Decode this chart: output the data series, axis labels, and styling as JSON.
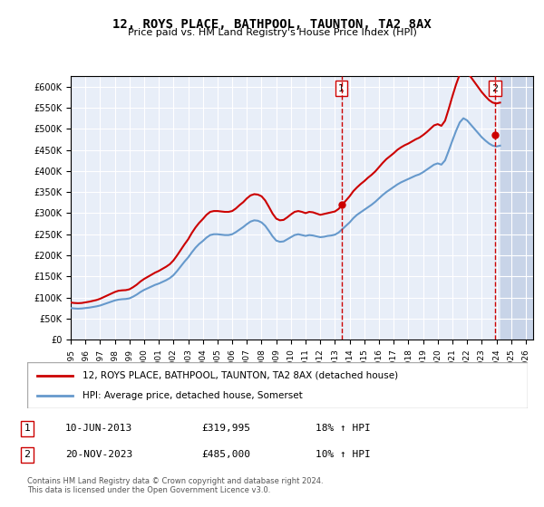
{
  "title": "12, ROYS PLACE, BATHPOOL, TAUNTON, TA2 8AX",
  "subtitle": "Price paid vs. HM Land Registry's House Price Index (HPI)",
  "ylabel": "",
  "ylim": [
    0,
    625000
  ],
  "yticks": [
    0,
    50000,
    100000,
    150000,
    200000,
    250000,
    300000,
    350000,
    400000,
    450000,
    500000,
    550000,
    600000
  ],
  "ytick_labels": [
    "£0",
    "£50K",
    "£100K",
    "£150K",
    "£200K",
    "£250K",
    "£300K",
    "£350K",
    "£400K",
    "£450K",
    "£500K",
    "£550K",
    "£600K"
  ],
  "x_start_year": 1995,
  "x_end_year": 2026,
  "xticks": [
    1995,
    1996,
    1997,
    1998,
    1999,
    2000,
    2001,
    2002,
    2003,
    2004,
    2005,
    2006,
    2007,
    2008,
    2009,
    2010,
    2011,
    2012,
    2013,
    2014,
    2015,
    2016,
    2017,
    2018,
    2019,
    2020,
    2021,
    2022,
    2023,
    2024,
    2025,
    2026
  ],
  "bg_color": "#e8eef8",
  "hatch_color": "#c8d4e8",
  "grid_color": "#ffffff",
  "red_line_color": "#cc0000",
  "blue_line_color": "#6699cc",
  "marker_color": "#cc0000",
  "sale1": {
    "date": 2013.44,
    "price": 319995,
    "label": "1"
  },
  "sale2": {
    "date": 2023.89,
    "price": 485000,
    "label": "2"
  },
  "legend_line1": "12, ROYS PLACE, BATHPOOL, TAUNTON, TA2 8AX (detached house)",
  "legend_line2": "HPI: Average price, detached house, Somerset",
  "table_rows": [
    [
      "1",
      "10-JUN-2013",
      "£319,995",
      "18% ↑ HPI"
    ],
    [
      "2",
      "20-NOV-2023",
      "£485,000",
      "10% ↑ HPI"
    ]
  ],
  "footer": "Contains HM Land Registry data © Crown copyright and database right 2024.\nThis data is licensed under the Open Government Licence v3.0.",
  "hpi_data": {
    "years": [
      1995.0,
      1995.25,
      1995.5,
      1995.75,
      1996.0,
      1996.25,
      1996.5,
      1996.75,
      1997.0,
      1997.25,
      1997.5,
      1997.75,
      1998.0,
      1998.25,
      1998.5,
      1998.75,
      1999.0,
      1999.25,
      1999.5,
      1999.75,
      2000.0,
      2000.25,
      2000.5,
      2000.75,
      2001.0,
      2001.25,
      2001.5,
      2001.75,
      2002.0,
      2002.25,
      2002.5,
      2002.75,
      2003.0,
      2003.25,
      2003.5,
      2003.75,
      2004.0,
      2004.25,
      2004.5,
      2004.75,
      2005.0,
      2005.25,
      2005.5,
      2005.75,
      2006.0,
      2006.25,
      2006.5,
      2006.75,
      2007.0,
      2007.25,
      2007.5,
      2007.75,
      2008.0,
      2008.25,
      2008.5,
      2008.75,
      2009.0,
      2009.25,
      2009.5,
      2009.75,
      2010.0,
      2010.25,
      2010.5,
      2010.75,
      2011.0,
      2011.25,
      2011.5,
      2011.75,
      2012.0,
      2012.25,
      2012.5,
      2012.75,
      2013.0,
      2013.25,
      2013.5,
      2013.75,
      2014.0,
      2014.25,
      2014.5,
      2014.75,
      2015.0,
      2015.25,
      2015.5,
      2015.75,
      2016.0,
      2016.25,
      2016.5,
      2016.75,
      2017.0,
      2017.25,
      2017.5,
      2017.75,
      2018.0,
      2018.25,
      2018.5,
      2018.75,
      2019.0,
      2019.25,
      2019.5,
      2019.75,
      2020.0,
      2020.25,
      2020.5,
      2020.75,
      2021.0,
      2021.25,
      2021.5,
      2021.75,
      2022.0,
      2022.25,
      2022.5,
      2022.75,
      2023.0,
      2023.25,
      2023.5,
      2023.75,
      2024.0,
      2024.25
    ],
    "values": [
      75000,
      74000,
      73500,
      74000,
      75000,
      76000,
      77500,
      79000,
      81000,
      84000,
      87000,
      90000,
      93000,
      95000,
      96000,
      96500,
      98000,
      102000,
      107000,
      113000,
      118000,
      122000,
      126000,
      130000,
      133000,
      137000,
      141000,
      146000,
      153000,
      163000,
      174000,
      185000,
      195000,
      207000,
      218000,
      227000,
      234000,
      242000,
      248000,
      250000,
      250000,
      249000,
      248000,
      248000,
      250000,
      255000,
      261000,
      267000,
      274000,
      280000,
      283000,
      282000,
      278000,
      270000,
      258000,
      245000,
      235000,
      232000,
      233000,
      238000,
      243000,
      248000,
      250000,
      248000,
      246000,
      248000,
      247000,
      245000,
      243000,
      244000,
      246000,
      247000,
      249000,
      254000,
      262000,
      270000,
      278000,
      288000,
      296000,
      302000,
      308000,
      314000,
      320000,
      327000,
      335000,
      343000,
      350000,
      356000,
      362000,
      368000,
      373000,
      377000,
      381000,
      385000,
      389000,
      392000,
      397000,
      403000,
      409000,
      415000,
      418000,
      415000,
      425000,
      448000,
      472000,
      495000,
      515000,
      525000,
      520000,
      510000,
      500000,
      490000,
      480000,
      472000,
      465000,
      460000,
      458000,
      460000
    ]
  },
  "hpi_red_data": {
    "years": [
      1995.0,
      1995.25,
      1995.5,
      1995.75,
      1996.0,
      1996.25,
      1996.5,
      1996.75,
      1997.0,
      1997.25,
      1997.5,
      1997.75,
      1998.0,
      1998.25,
      1998.5,
      1998.75,
      1999.0,
      1999.25,
      1999.5,
      1999.75,
      2000.0,
      2000.25,
      2000.5,
      2000.75,
      2001.0,
      2001.25,
      2001.5,
      2001.75,
      2002.0,
      2002.25,
      2002.5,
      2002.75,
      2003.0,
      2003.25,
      2003.5,
      2003.75,
      2004.0,
      2004.25,
      2004.5,
      2004.75,
      2005.0,
      2005.25,
      2005.5,
      2005.75,
      2006.0,
      2006.25,
      2006.5,
      2006.75,
      2007.0,
      2007.25,
      2007.5,
      2007.75,
      2008.0,
      2008.25,
      2008.5,
      2008.75,
      2009.0,
      2009.25,
      2009.5,
      2009.75,
      2010.0,
      2010.25,
      2010.5,
      2010.75,
      2011.0,
      2011.25,
      2011.5,
      2011.75,
      2012.0,
      2012.25,
      2012.5,
      2012.75,
      2013.0,
      2013.25,
      2013.5,
      2013.75,
      2014.0,
      2014.25,
      2014.5,
      2014.75,
      2015.0,
      2015.25,
      2015.5,
      2015.75,
      2016.0,
      2016.25,
      2016.5,
      2016.75,
      2017.0,
      2017.25,
      2017.5,
      2017.75,
      2018.0,
      2018.25,
      2018.5,
      2018.75,
      2019.0,
      2019.25,
      2019.5,
      2019.75,
      2020.0,
      2020.25,
      2020.5,
      2020.75,
      2021.0,
      2021.25,
      2021.5,
      2021.75,
      2022.0,
      2022.25,
      2022.5,
      2022.75,
      2023.0,
      2023.25,
      2023.5,
      2023.75,
      2024.0,
      2024.25
    ],
    "values": [
      88000,
      87000,
      86500,
      87000,
      88500,
      90000,
      92000,
      94000,
      97000,
      101000,
      105000,
      109000,
      113000,
      116000,
      117000,
      117500,
      119500,
      124500,
      130500,
      138000,
      144000,
      149000,
      154000,
      159000,
      163000,
      168000,
      173000,
      179000,
      188000,
      200000,
      213000,
      226000,
      238000,
      253000,
      266000,
      277000,
      286000,
      296000,
      303000,
      305000,
      305000,
      304000,
      303000,
      303000,
      305000,
      311000,
      319000,
      326000,
      335000,
      342000,
      345000,
      344000,
      340000,
      330000,
      315000,
      299000,
      287000,
      283000,
      284000,
      290000,
      297000,
      303000,
      305000,
      303000,
      300000,
      303000,
      302000,
      299000,
      296000,
      298000,
      300000,
      302000,
      304000,
      310000,
      320000,
      330000,
      340000,
      352000,
      361000,
      369000,
      376000,
      384000,
      391000,
      399000,
      409000,
      419000,
      428000,
      435000,
      442000,
      450000,
      456000,
      461000,
      465000,
      470000,
      475000,
      479000,
      485000,
      492000,
      500000,
      508000,
      511000,
      507000,
      519000,
      547000,
      577000,
      605000,
      629000,
      641000,
      635000,
      623000,
      611000,
      599000,
      587000,
      577000,
      568000,
      562000,
      560000,
      562000
    ]
  }
}
